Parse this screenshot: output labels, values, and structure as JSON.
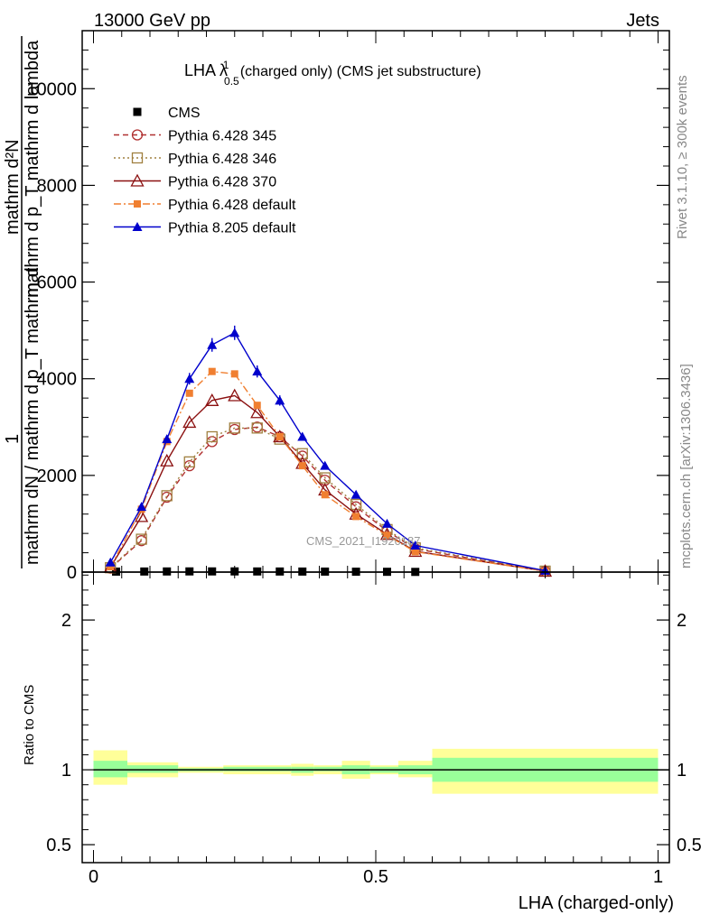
{
  "header": {
    "left_title": "13000 GeV pp",
    "right_title": "Jets"
  },
  "side_labels": {
    "rivet": "Rivet 3.1.10, ≥ 300k events",
    "mcplots": "mcplots.cern.ch [arXiv:1306.3436]"
  },
  "watermark": "CMS_2021_I1920187",
  "colors": {
    "cms": "#000000",
    "p345": "#b03030",
    "p346": "#a08040",
    "p370": "#8b1010",
    "p6def": "#f07f30",
    "p8def": "#0000cc",
    "band_inner": "#99ff99",
    "band_outer": "#ffff99"
  },
  "chart_data": [
    {
      "type": "line",
      "panel": "main",
      "title_main": "LHA λ",
      "title_sup": "1",
      "title_sub": "0.5",
      "title_rest": " (charged only) (CMS jet substructure)",
      "ylabel_parts": [
        "1",
        "mathrm dN / mathrm d p",
        "T",
        " mathrm d",
        "mathrm d",
        "2",
        "N",
        "mathrm d p",
        "T",
        " mathrm d lambda"
      ],
      "ylabel_numer": "1",
      "ylabel_denom": "mathrm dN / mathrm d p_T mathrm d",
      "ylabel_right": "mathrm d²N / mathrm d p_T mathrm d lambda",
      "ylabel_fraction_top": "mathrm d²N",
      "ylabel_fraction_bottom": "mathrm d p_T mathrm d lambda",
      "xlabel": "LHA (charged-only)",
      "xlim": [
        -0.02,
        1.02
      ],
      "ylim": [
        0,
        11200
      ],
      "yticks": [
        {
          "v": 0,
          "label": "0"
        },
        {
          "v": 2000,
          "label": "2000"
        },
        {
          "v": 4000,
          "label": "4000"
        },
        {
          "v": 6000,
          "label": "6000"
        },
        {
          "v": 8000,
          "label": "8000"
        },
        {
          "v": 10000,
          "label": "10000"
        }
      ],
      "series": [
        {
          "name": "CMS",
          "key": "cms",
          "style": "data",
          "x": [
            0.04,
            0.09,
            0.13,
            0.17,
            0.21,
            0.25,
            0.29,
            0.33,
            0.37,
            0.41,
            0.465,
            0.52,
            0.57
          ],
          "y": [
            10,
            12,
            13,
            14,
            14,
            14,
            13,
            12,
            11,
            10,
            8,
            6,
            4
          ]
        },
        {
          "name": "Pythia 6.428 345",
          "key": "p345",
          "style": "dashed-circle",
          "x": [
            0.03,
            0.085,
            0.13,
            0.17,
            0.21,
            0.25,
            0.29,
            0.33,
            0.37,
            0.41,
            0.465,
            0.52,
            0.57,
            0.8
          ],
          "y": [
            80,
            650,
            1550,
            2200,
            2700,
            2950,
            3000,
            2800,
            2400,
            1900,
            1350,
            850,
            480,
            20
          ]
        },
        {
          "name": "Pythia 6.428 346",
          "key": "p346",
          "style": "dotted-square",
          "x": [
            0.03,
            0.085,
            0.13,
            0.17,
            0.21,
            0.25,
            0.29,
            0.33,
            0.37,
            0.41,
            0.465,
            0.52,
            0.57,
            0.8
          ],
          "y": [
            90,
            680,
            1580,
            2280,
            2800,
            2980,
            2980,
            2750,
            2450,
            1950,
            1400,
            880,
            500,
            20
          ]
        },
        {
          "name": "Pythia 6.428 370",
          "key": "p370",
          "style": "solid-triangle-open",
          "x": [
            0.03,
            0.085,
            0.13,
            0.17,
            0.21,
            0.25,
            0.29,
            0.33,
            0.37,
            0.41,
            0.465,
            0.52,
            0.57,
            0.8
          ],
          "y": [
            100,
            1150,
            2300,
            3100,
            3550,
            3650,
            3300,
            2800,
            2250,
            1700,
            1200,
            780,
            430,
            20
          ]
        },
        {
          "name": "Pythia 6.428 default",
          "key": "p6def",
          "style": "dashdot-square-filled",
          "x": [
            0.03,
            0.085,
            0.13,
            0.17,
            0.21,
            0.25,
            0.29,
            0.33,
            0.37,
            0.41,
            0.465,
            0.52,
            0.57,
            0.8
          ],
          "y": [
            110,
            1300,
            2700,
            3700,
            4150,
            4100,
            3450,
            2800,
            2200,
            1600,
            1150,
            760,
            420,
            20
          ]
        },
        {
          "name": "Pythia 8.205 default",
          "key": "p8def",
          "style": "solid-triangle-filled",
          "x": [
            0.03,
            0.085,
            0.13,
            0.17,
            0.21,
            0.25,
            0.29,
            0.33,
            0.37,
            0.41,
            0.465,
            0.52,
            0.57,
            0.8
          ],
          "y": [
            200,
            1350,
            2750,
            4000,
            4700,
            4950,
            4150,
            3550,
            2800,
            2200,
            1600,
            1000,
            550,
            30
          ]
        }
      ],
      "legend_position": "top-left"
    },
    {
      "type": "area",
      "panel": "ratio",
      "ylabel": "Ratio to CMS",
      "xlabel": "LHA (charged-only)",
      "xlim": [
        -0.02,
        1.02
      ],
      "ylim": [
        0.38,
        2.32
      ],
      "yticks": [
        {
          "v": 0.5,
          "label": "0.5"
        },
        {
          "v": 1,
          "label": "1"
        },
        {
          "v": 2,
          "label": "2"
        }
      ],
      "xticks": [
        {
          "v": 0,
          "label": "0"
        },
        {
          "v": 0.5,
          "label": "0.5"
        },
        {
          "v": 1,
          "label": "1"
        }
      ],
      "bins": [
        {
          "x0": 0.0,
          "x1": 0.06,
          "in_lo": 0.95,
          "in_hi": 1.06,
          "out_lo": 0.9,
          "out_hi": 1.13
        },
        {
          "x0": 0.06,
          "x1": 0.15,
          "in_lo": 0.98,
          "in_hi": 1.03,
          "out_lo": 0.95,
          "out_hi": 1.05
        },
        {
          "x0": 0.15,
          "x1": 0.23,
          "in_lo": 0.99,
          "in_hi": 1.01,
          "out_lo": 0.98,
          "out_hi": 1.02
        },
        {
          "x0": 0.23,
          "x1": 0.35,
          "in_lo": 0.99,
          "in_hi": 1.02,
          "out_lo": 0.97,
          "out_hi": 1.03
        },
        {
          "x0": 0.35,
          "x1": 0.39,
          "in_lo": 0.98,
          "in_hi": 1.02,
          "out_lo": 0.96,
          "out_hi": 1.04
        },
        {
          "x0": 0.39,
          "x1": 0.44,
          "in_lo": 0.99,
          "in_hi": 1.02,
          "out_lo": 0.97,
          "out_hi": 1.03
        },
        {
          "x0": 0.44,
          "x1": 0.49,
          "in_lo": 0.97,
          "in_hi": 1.03,
          "out_lo": 0.94,
          "out_hi": 1.06
        },
        {
          "x0": 0.49,
          "x1": 0.54,
          "in_lo": 0.98,
          "in_hi": 1.02,
          "out_lo": 0.97,
          "out_hi": 1.03
        },
        {
          "x0": 0.54,
          "x1": 0.6,
          "in_lo": 0.97,
          "in_hi": 1.03,
          "out_lo": 0.95,
          "out_hi": 1.06
        },
        {
          "x0": 0.6,
          "x1": 1.0,
          "in_lo": 0.92,
          "in_hi": 1.08,
          "out_lo": 0.84,
          "out_hi": 1.14
        }
      ]
    }
  ]
}
